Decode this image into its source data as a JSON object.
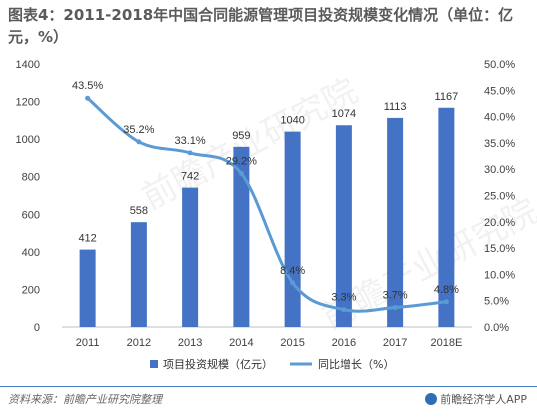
{
  "title": "图表4：2011-2018年中国合同能源管理项目投资规模变化情况（单位：亿元，%）",
  "source": "资料来源：前瞻产业研究院整理",
  "brand": "前瞻经济学人APP",
  "colors": {
    "bar": "#4472c4",
    "line": "#5b9bd5",
    "axis_text": "#404040",
    "grid": "#e0e0e0"
  },
  "chart_data": {
    "type": "bar",
    "categories": [
      "2011",
      "2012",
      "2013",
      "2014",
      "2015",
      "2016",
      "2017",
      "2018E"
    ],
    "series": [
      {
        "name": "项目投资规模（亿元）",
        "type": "bar",
        "axis": "left",
        "values": [
          412,
          558,
          742,
          959,
          1040,
          1074,
          1113,
          1167
        ]
      },
      {
        "name": "同比增长（%）",
        "type": "line",
        "axis": "right",
        "values": [
          43.5,
          35.2,
          33.1,
          29.2,
          8.4,
          3.3,
          3.7,
          4.8
        ]
      }
    ],
    "y_left": {
      "min": 0,
      "max": 1400,
      "ticks": [
        0,
        200,
        400,
        600,
        800,
        1000,
        1200,
        1400
      ]
    },
    "y_right": {
      "min": 0,
      "max": 50,
      "ticks": [
        "0.0%",
        "5.0%",
        "10.0%",
        "15.0%",
        "20.0%",
        "25.0%",
        "30.0%",
        "35.0%",
        "40.0%",
        "45.0%",
        "50.0%"
      ]
    },
    "bar_labels": [
      "412",
      "558",
      "742",
      "959",
      "1040",
      "1074",
      "1113",
      "1167"
    ],
    "line_labels": [
      "43.5%",
      "35.2%",
      "33.1%",
      "29.2%",
      "8.4%",
      "3.3%",
      "3.7%",
      "4.8%"
    ],
    "legend": "bottom",
    "grid": false
  }
}
